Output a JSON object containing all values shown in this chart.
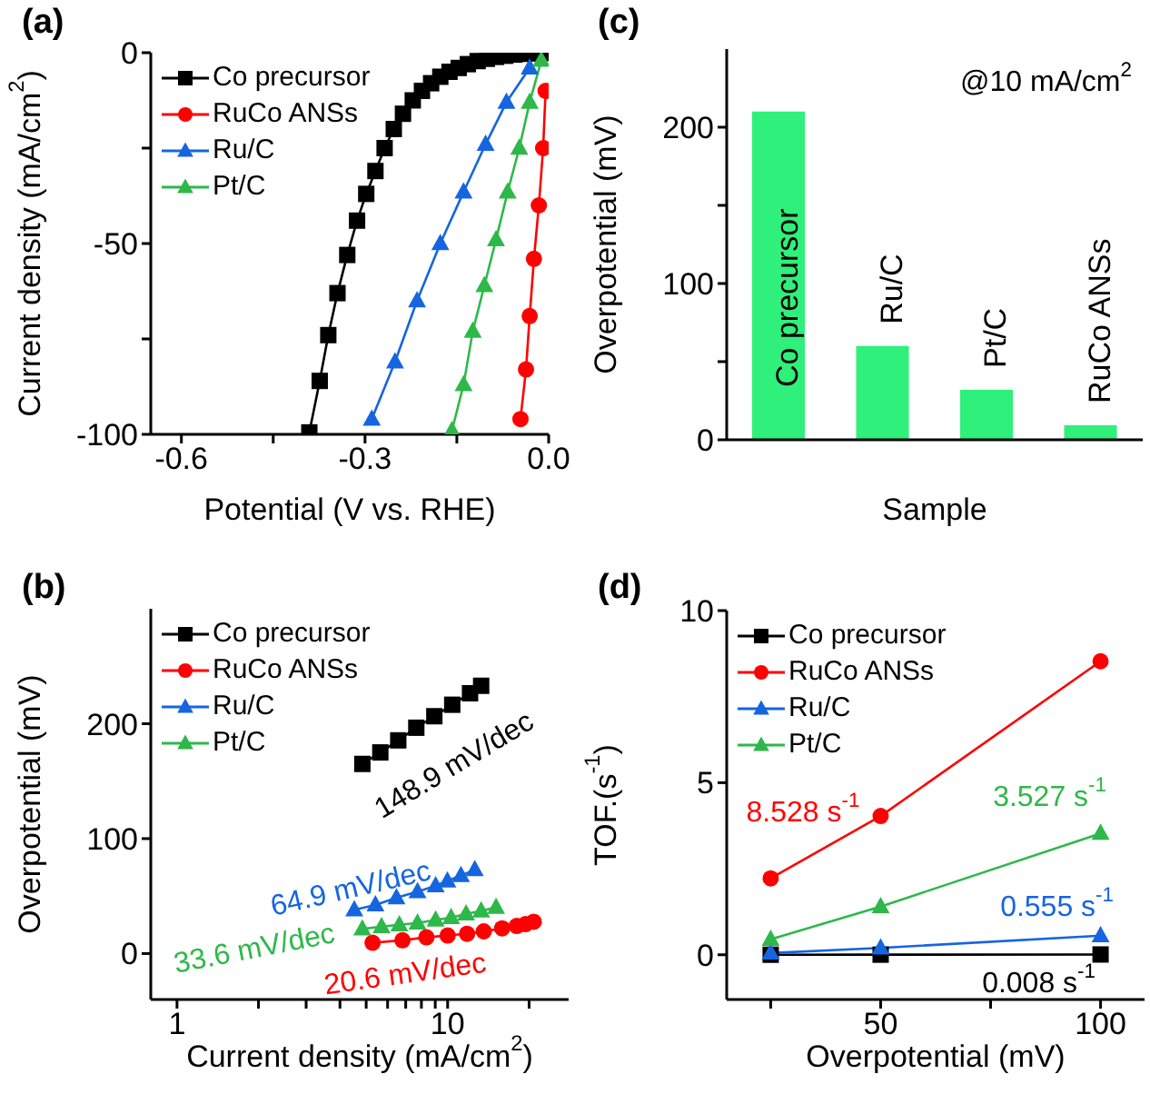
{
  "chart_data": [
    {
      "type": "line",
      "title": "(a)",
      "xlabel": "Potential (V vs. RHE)",
      "ylabel": "Current density (mA/cm$^{2}$)",
      "xlim": [
        -0.65,
        0
      ],
      "ylim": [
        -100,
        0
      ],
      "xticks": [
        -0.6,
        {
          "value": -0.45,
          "label": null
        },
        -0.3,
        {
          "value": -0.15,
          "label": null
        },
        {
          "value": 0,
          "label": "0.0"
        }
      ],
      "yticks": [
        -100,
        {
          "value": -75,
          "label": null
        },
        -50,
        {
          "value": -25,
          "label": null
        },
        0
      ],
      "legend": "top left",
      "grid": false,
      "series": [
        {
          "name": "Co precursor",
          "color": "#000000",
          "marker": "square",
          "x": [
            -0.391,
            -0.374,
            -0.36,
            -0.345,
            -0.329,
            -0.313,
            -0.298,
            -0.283,
            -0.268,
            -0.253,
            -0.238,
            -0.222,
            -0.207,
            -0.192,
            -0.177,
            -0.162,
            -0.147,
            -0.132,
            -0.116,
            -0.101,
            -0.086,
            -0.071,
            -0.056,
            -0.041,
            -0.026,
            -0.01
          ],
          "values": [
            -99.5,
            -86,
            -74,
            -63,
            -53,
            -44,
            -37,
            -31,
            -25,
            -20,
            -16,
            -12.5,
            -10,
            -8,
            -6.3,
            -5,
            -4,
            -3,
            -2.2,
            -1.6,
            -1.1,
            -0.8,
            -0.5,
            -0.3,
            -0.2,
            -0.1
          ]
        },
        {
          "name": "RuCo ANSs",
          "color": "#ff0000",
          "marker": "circle",
          "x": [
            -0.046,
            -0.037,
            -0.031,
            -0.024,
            -0.016,
            -0.009,
            -0.005
          ],
          "values": [
            -96,
            -83,
            -69,
            -54,
            -40,
            -25,
            -10
          ]
        },
        {
          "name": "Ru/C",
          "color": "#1565e0",
          "marker": "triangle",
          "x": [
            -0.289,
            -0.251,
            -0.215,
            -0.177,
            -0.139,
            -0.103,
            -0.069,
            -0.031
          ],
          "values": [
            -96,
            -81,
            -65,
            -50,
            -36.5,
            -24,
            -13,
            -4
          ]
        },
        {
          "name": "Pt/C",
          "color": "#2eb84a",
          "marker": "triangle",
          "x": [
            -0.158,
            -0.139,
            -0.124,
            -0.105,
            -0.086,
            -0.067,
            -0.048,
            -0.031,
            -0.012
          ],
          "values": [
            -99,
            -87,
            -73,
            -61,
            -49,
            -36.5,
            -25,
            -13,
            -2
          ]
        }
      ]
    },
    {
      "type": "bar",
      "title": "(c)",
      "xlabel": "Sample",
      "ylabel": "Overpotential (mV)",
      "categories": [
        "Co precursor",
        "Ru/C",
        "Pt/C",
        "RuCo ANSs"
      ],
      "values": [
        210,
        60,
        32,
        9.3
      ],
      "color": "#2ef07a",
      "ylim": [
        0,
        250
      ],
      "yticks": [
        0,
        {
          "value": 50,
          "label": null
        },
        100,
        {
          "value": 150,
          "label": null
        },
        200
      ],
      "annotations": [
        "@10 mA/cm$^{2}$"
      ],
      "grid": false
    },
    {
      "type": "line",
      "title": "(b)",
      "xlabel": "Current density (mA/cm$^{2}$)",
      "ylabel": "Overpotential (mV)",
      "log": "x",
      "xlim": [
        0.8,
        28
      ],
      "ylim": [
        -40,
        300
      ],
      "xticks": [
        1,
        {
          "value": 2,
          "label": null
        },
        {
          "value": 3,
          "label": null
        },
        {
          "value": 4,
          "label": null
        },
        {
          "value": 5,
          "label": null
        },
        {
          "value": 6,
          "label": null
        },
        {
          "value": 7,
          "label": null
        },
        {
          "value": 8,
          "label": null
        },
        {
          "value": 9,
          "label": null
        },
        10,
        {
          "value": 20,
          "label": null
        }
      ],
      "yticks": [
        0,
        100,
        200
      ],
      "legend": "top left",
      "grid": false,
      "series": [
        {
          "name": "Co precursor",
          "color": "#000000",
          "marker": "square",
          "x": [
            4.84,
            5.64,
            6.57,
            7.66,
            8.93,
            10.4,
            12.1,
            13.3
          ],
          "values": [
            165,
            175,
            185.5,
            196.5,
            206.5,
            216.5,
            226.5,
            233
          ]
        },
        {
          "name": "RuCo ANSs",
          "color": "#ff0000",
          "marker": "circle",
          "x": [
            5.28,
            6.81,
            8.35,
            10,
            11.8,
            13.6,
            15.9,
            18,
            19.4,
            20.8
          ],
          "values": [
            9.4,
            11.5,
            14.1,
            15.7,
            17.2,
            19.3,
            21.9,
            24,
            25.6,
            27.7
          ]
        },
        {
          "name": "Ru/C",
          "color": "#1565e0",
          "marker": "triangle",
          "x": [
            4.52,
            5.41,
            6.47,
            7.74,
            9.03,
            9.98,
            11.2,
            12.6
          ],
          "values": [
            38,
            42.3,
            48.6,
            53.8,
            59,
            63.2,
            67.9,
            73
          ]
        },
        {
          "name": "Pt/C",
          "color": "#2eb84a",
          "marker": "triangle",
          "x": [
            4.84,
            5.7,
            6.63,
            7.74,
            9.03,
            10.3,
            11.7,
            13.3,
            15.1
          ],
          "values": [
            21.4,
            23.5,
            25,
            26.6,
            29.2,
            31.3,
            34.5,
            37.1,
            40.2
          ]
        }
      ],
      "annotations": [
        "148.9 mV/dec",
        "20.6 mV/dec",
        "64.9 mV/dec",
        "33.6 mV/dec"
      ]
    },
    {
      "type": "line",
      "title": "(d)",
      "xlabel": "Overpotential (mV)",
      "ylabel": "TOF.(s$^{-1}$)",
      "xlim": [
        15,
        110
      ],
      "ylim": [
        -1.3,
        10
      ],
      "xticks": [
        {
          "value": 25,
          "label": null
        },
        50,
        {
          "value": 75,
          "label": null
        },
        100
      ],
      "yticks": [
        0,
        5,
        10
      ],
      "legend": "top left",
      "grid": false,
      "series": [
        {
          "name": "Co precursor",
          "color": "#000000",
          "marker": "square",
          "x": [
            25,
            50,
            100
          ],
          "values": [
            0.001,
            0.003,
            0.008
          ],
          "value_labels": [
            null,
            null,
            "0.008 s$^{-1}$"
          ]
        },
        {
          "name": "RuCo ANSs",
          "color": "#ff0000",
          "marker": "circle",
          "x": [
            25,
            50,
            100
          ],
          "values": [
            2.22,
            4.03,
            8.528
          ]
        },
        {
          "name": "Ru/C",
          "color": "#1565e0",
          "marker": "triangle",
          "x": [
            25,
            50,
            100
          ],
          "values": [
            0.05,
            0.2,
            0.555
          ],
          "value_labels": [
            null,
            null,
            "0.555 s$^{-1}$"
          ]
        },
        {
          "name": "Pt/C",
          "color": "#2eb84a",
          "marker": "triangle",
          "x": [
            25,
            50,
            100
          ],
          "values": [
            0.45,
            1.4,
            3.527
          ],
          "value_labels": [
            null,
            null,
            "3.527 s$^{-1}$"
          ]
        }
      ],
      "annotations": [
        "8.528 s$^{-1}$"
      ]
    }
  ]
}
